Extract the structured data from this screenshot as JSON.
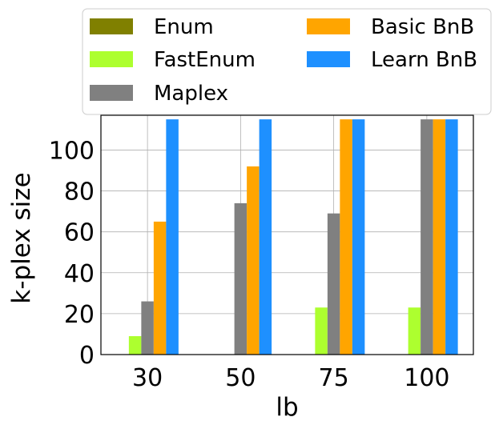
{
  "chart_data": {
    "type": "bar",
    "title": "",
    "xlabel": "lb",
    "ylabel": "k-plex size",
    "categories": [
      "30",
      "50",
      "75",
      "100"
    ],
    "ylim": [
      0,
      117
    ],
    "yticks": [
      0,
      20,
      40,
      60,
      80,
      100
    ],
    "grid": true,
    "legend_position": "top",
    "series": [
      {
        "name": "Enum",
        "color": "#808000",
        "values": [
          0,
          0,
          0,
          0
        ]
      },
      {
        "name": "FastEnum",
        "color": "#adff2f",
        "values": [
          9,
          0,
          23,
          23
        ]
      },
      {
        "name": "Maplex",
        "color": "#808080",
        "values": [
          26,
          74,
          69,
          115
        ]
      },
      {
        "name": "Basic BnB",
        "color": "#ffa500",
        "values": [
          65,
          92,
          115,
          115
        ]
      },
      {
        "name": "Learn BnB",
        "color": "#1e90ff",
        "values": [
          115,
          115,
          115,
          115
        ]
      }
    ]
  }
}
